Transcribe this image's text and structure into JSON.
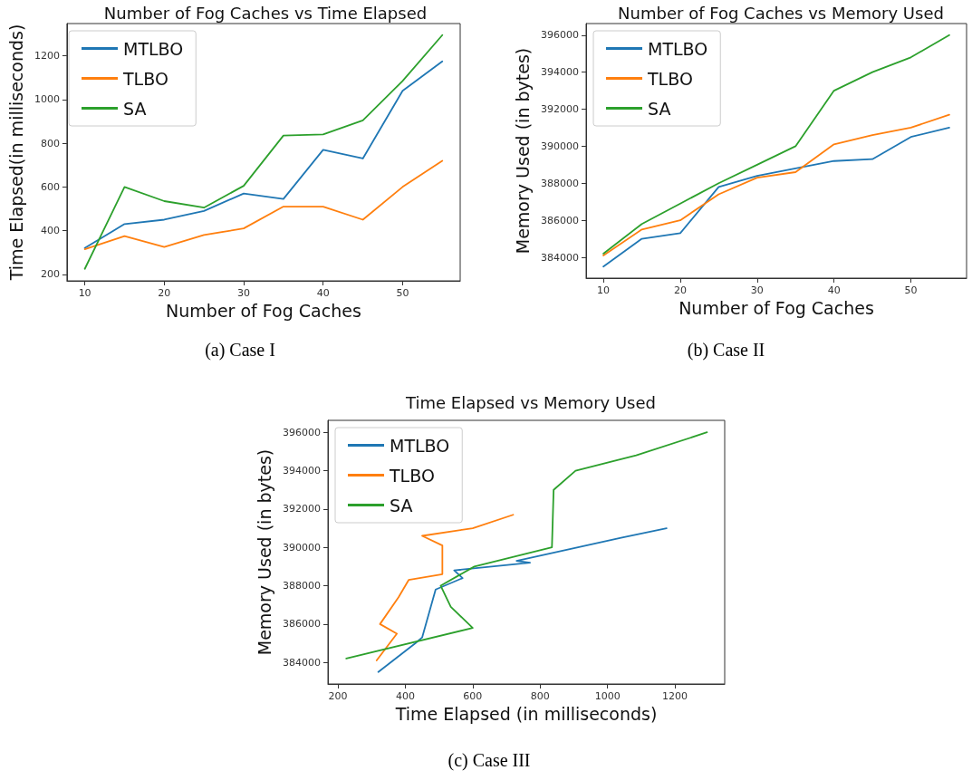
{
  "chart_data": [
    {
      "type": "line",
      "title": "Number of Fog Caches vs Time Elapsed",
      "xlabel": "Number of Fog Caches",
      "ylabel": "Time Elapsed(in milliseconds)",
      "annotations": [
        "(a)  Case I"
      ],
      "x": [
        10,
        15,
        20,
        25,
        30,
        35,
        40,
        45,
        50,
        55
      ],
      "series": [
        {
          "name": "MTLBO",
          "color": "#1f77b4",
          "values": [
            320,
            430,
            450,
            490,
            570,
            545,
            770,
            730,
            1040,
            1175
          ]
        },
        {
          "name": "TLBO",
          "color": "#ff7f0e",
          "values": [
            315,
            375,
            325,
            380,
            410,
            510,
            510,
            450,
            600,
            720
          ]
        },
        {
          "name": "SA",
          "color": "#2ca02c",
          "values": [
            225,
            600,
            535,
            505,
            605,
            835,
            840,
            905,
            1085,
            1295
          ]
        }
      ],
      "xlim": [
        7.75,
        57.25
      ],
      "ylim": [
        170,
        1348
      ],
      "xticks": [
        10,
        20,
        30,
        40,
        50
      ],
      "yticks": [
        200,
        400,
        600,
        800,
        1000,
        1200
      ],
      "legend": "top left",
      "grid": false
    },
    {
      "type": "line",
      "title": "Number of Fog Caches vs Memory Used",
      "xlabel": "Number of Fog Caches",
      "ylabel": "Memory Used (in bytes)",
      "annotations": [
        "(b)  Case II"
      ],
      "x": [
        10,
        15,
        20,
        25,
        30,
        35,
        40,
        45,
        50,
        55
      ],
      "series": [
        {
          "name": "MTLBO",
          "color": "#1f77b4",
          "values": [
            383500,
            385000,
            385300,
            387800,
            388400,
            388800,
            389200,
            389300,
            390500,
            391000
          ]
        },
        {
          "name": "TLBO",
          "color": "#ff7f0e",
          "values": [
            384100,
            385500,
            386000,
            387400,
            388300,
            388600,
            390100,
            390600,
            391000,
            391700
          ]
        },
        {
          "name": "SA",
          "color": "#2ca02c",
          "values": [
            384200,
            385800,
            386900,
            388000,
            389000,
            390000,
            393000,
            394000,
            394800,
            396000
          ]
        }
      ],
      "xlim": [
        7.75,
        57.25
      ],
      "ylim": [
        382875,
        396625
      ],
      "xticks": [
        10,
        20,
        30,
        40,
        50
      ],
      "yticks": [
        384000,
        386000,
        388000,
        390000,
        392000,
        394000,
        396000
      ],
      "legend": "top left",
      "grid": false
    },
    {
      "type": "line",
      "title": "Time Elapsed vs Memory Used",
      "xlabel": "Time Elapsed (in milliseconds)",
      "ylabel": "Memory Used (in bytes)",
      "annotations": [
        "(c)  Case III"
      ],
      "series": [
        {
          "name": "MTLBO",
          "color": "#1f77b4",
          "x": [
            320,
            430,
            450,
            490,
            570,
            545,
            770,
            730,
            1040,
            1175
          ],
          "values": [
            383500,
            385000,
            385300,
            387800,
            388400,
            388800,
            389200,
            389300,
            390500,
            391000
          ]
        },
        {
          "name": "TLBO",
          "color": "#ff7f0e",
          "x": [
            315,
            375,
            325,
            380,
            410,
            510,
            510,
            450,
            600,
            720
          ],
          "values": [
            384100,
            385500,
            386000,
            387400,
            388300,
            388600,
            390100,
            390600,
            391000,
            391700
          ]
        },
        {
          "name": "SA",
          "color": "#2ca02c",
          "x": [
            225,
            600,
            535,
            505,
            605,
            835,
            840,
            905,
            1085,
            1295
          ],
          "values": [
            384200,
            385800,
            386900,
            388000,
            389000,
            390000,
            393000,
            394000,
            394800,
            396000
          ]
        }
      ],
      "xlim": [
        170.5,
        1347.5
      ],
      "ylim": [
        382875,
        396625
      ],
      "xticks": [
        200,
        400,
        600,
        800,
        1000,
        1200
      ],
      "yticks": [
        384000,
        386000,
        388000,
        390000,
        392000,
        394000,
        396000
      ],
      "legend": "top left",
      "grid": false
    }
  ]
}
